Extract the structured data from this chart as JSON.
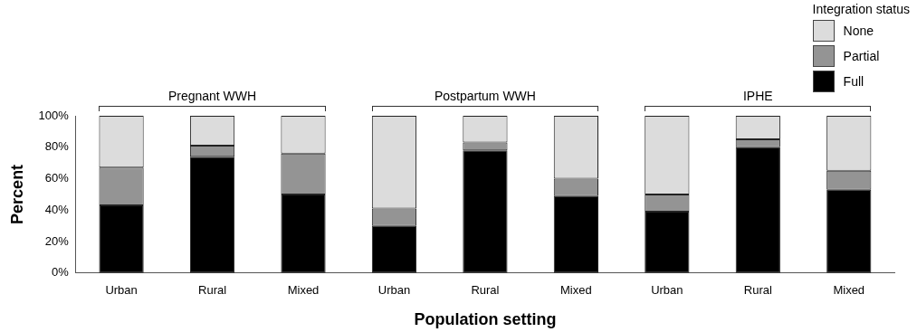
{
  "chart_data": {
    "type": "bar",
    "stacked": true,
    "categories": [
      "Urban",
      "Rural",
      "Mixed",
      "Urban",
      "Rural",
      "Mixed",
      "Urban",
      "Rural",
      "Mixed"
    ],
    "series": [
      {
        "name": "Full",
        "color": "#000000",
        "values": [
          43,
          74,
          50,
          30,
          78,
          49,
          39,
          80,
          53
        ]
      },
      {
        "name": "Partial",
        "color": "#949494",
        "values": [
          24,
          7,
          26,
          11,
          5,
          11,
          11,
          5,
          12
        ]
      },
      {
        "name": "None",
        "color": "#dcdcdc",
        "values": [
          33,
          19,
          24,
          59,
          17,
          40,
          50,
          15,
          35
        ]
      }
    ],
    "ylim": [
      0,
      100
    ],
    "yticks": [
      {
        "value": 0,
        "label": "0%"
      },
      {
        "value": 20,
        "label": "20%"
      },
      {
        "value": 40,
        "label": "40%"
      },
      {
        "value": 60,
        "label": "60%"
      },
      {
        "value": 80,
        "label": "80%"
      },
      {
        "value": 100,
        "label": "100%"
      }
    ],
    "xlabel": "Population setting",
    "ylabel": "Percent",
    "legend_title": "Integration status",
    "legend": "top right",
    "grid": false,
    "annotations": [
      "Pregnant WWH",
      "Postpartum WWH",
      "IPHE"
    ]
  }
}
